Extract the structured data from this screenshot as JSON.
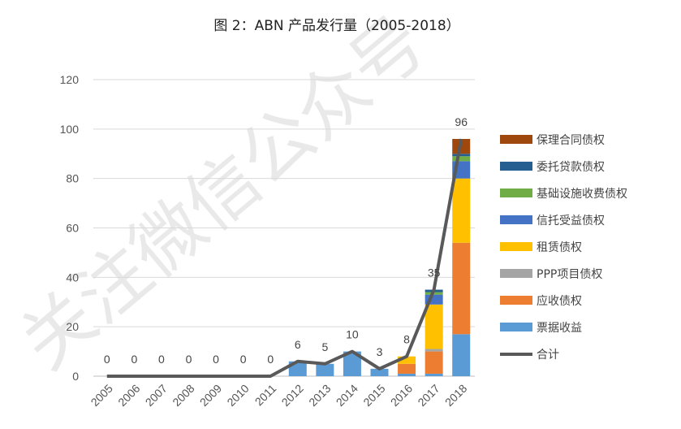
{
  "chart_data": {
    "type": "bar",
    "stacked": true,
    "title": "图 2：ABN 产品发行量（2005-2018）",
    "categories": [
      "2005",
      "2006",
      "2007",
      "2008",
      "2009",
      "2010",
      "2011",
      "2012",
      "2013",
      "2014",
      "2015",
      "2016",
      "2017",
      "2018"
    ],
    "ylim": [
      0,
      120
    ],
    "yticks": [
      0,
      20,
      40,
      60,
      80,
      100,
      120
    ],
    "grid": true,
    "legend_position": "right",
    "series": [
      {
        "name": "票据收益",
        "color": "#5b9bd5",
        "values": [
          0,
          0,
          0,
          0,
          0,
          0,
          0,
          6,
          5,
          10,
          3,
          1,
          1,
          17
        ]
      },
      {
        "name": "应收债权",
        "color": "#ed7d31",
        "values": [
          0,
          0,
          0,
          0,
          0,
          0,
          0,
          0,
          0,
          0,
          0,
          4,
          9,
          37
        ]
      },
      {
        "name": "PPP项目债权",
        "color": "#a5a5a5",
        "values": [
          0,
          0,
          0,
          0,
          0,
          0,
          0,
          0,
          0,
          0,
          0,
          0,
          1,
          0
        ]
      },
      {
        "name": "租赁债权",
        "color": "#ffc000",
        "values": [
          0,
          0,
          0,
          0,
          0,
          0,
          0,
          0,
          0,
          0,
          0,
          3,
          18,
          26
        ]
      },
      {
        "name": "信托受益债权",
        "color": "#4472c4",
        "values": [
          0,
          0,
          0,
          0,
          0,
          0,
          0,
          0,
          0,
          0,
          0,
          0,
          4,
          7
        ]
      },
      {
        "name": "基础设施收费债权",
        "color": "#70ad47",
        "values": [
          0,
          0,
          0,
          0,
          0,
          0,
          0,
          0,
          0,
          0,
          0,
          0,
          1,
          2
        ]
      },
      {
        "name": "委托贷款债权",
        "color": "#255e91",
        "values": [
          0,
          0,
          0,
          0,
          0,
          0,
          0,
          0,
          0,
          0,
          0,
          0,
          1,
          1
        ]
      },
      {
        "name": "保理合同债权",
        "color": "#9e480e",
        "values": [
          0,
          0,
          0,
          0,
          0,
          0,
          0,
          0,
          0,
          0,
          0,
          0,
          0,
          6
        ]
      }
    ],
    "total": {
      "name": "合计",
      "color": "#595959",
      "values": [
        0,
        0,
        0,
        0,
        0,
        0,
        0,
        6,
        5,
        10,
        3,
        8,
        35,
        96
      ]
    }
  },
  "watermark": "关注微信公众号"
}
